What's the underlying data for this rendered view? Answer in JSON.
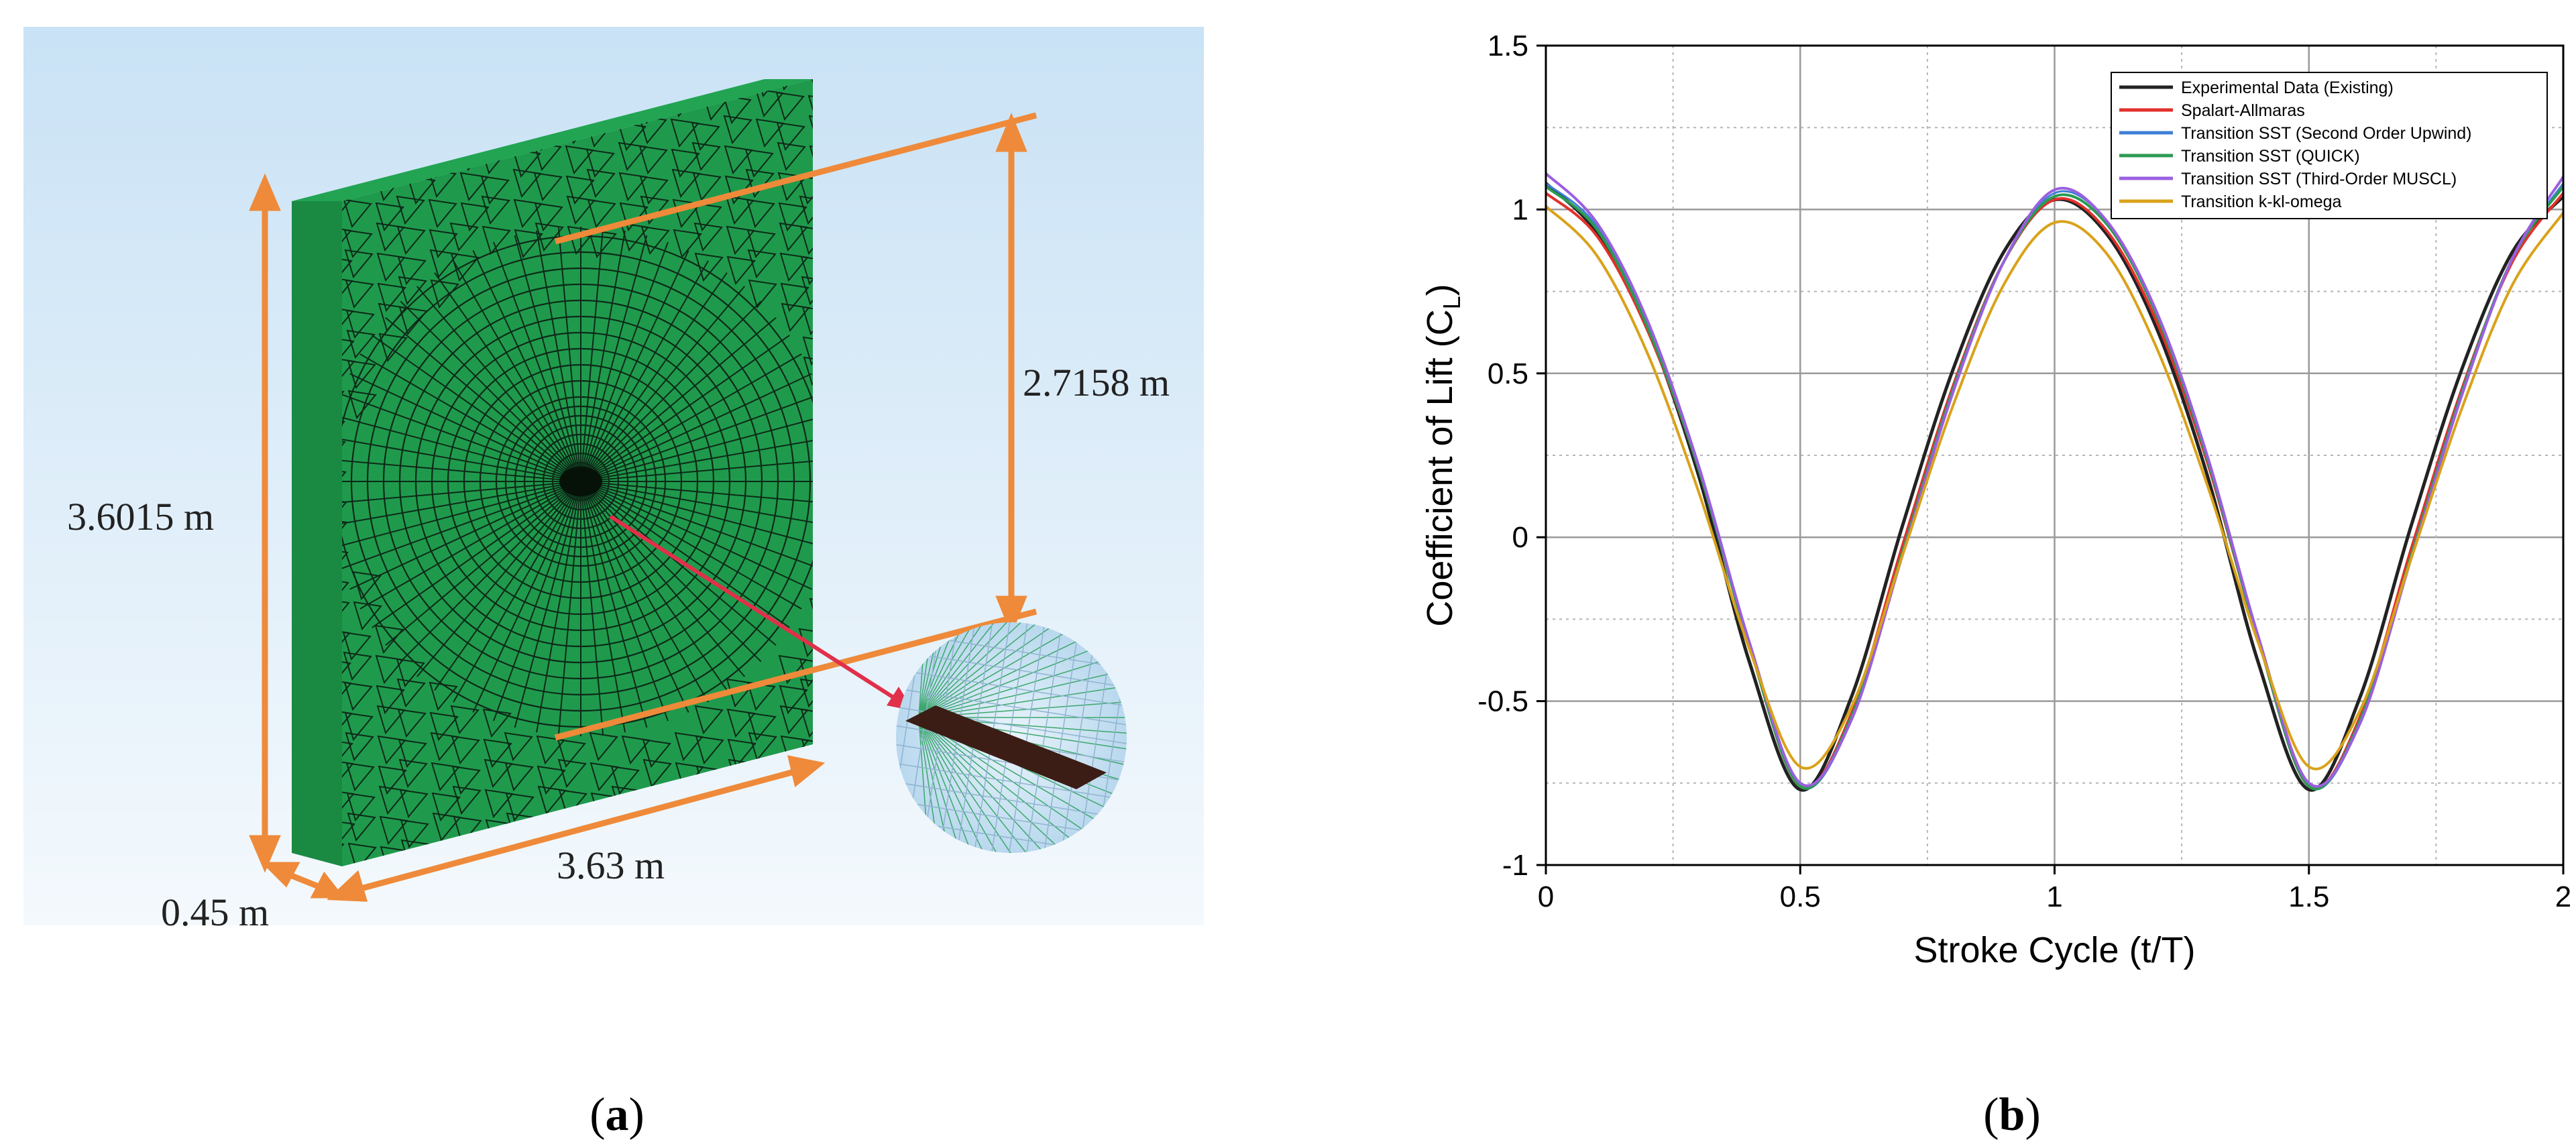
{
  "panel_a": {
    "caption": "a",
    "dimensions": {
      "height": "3.6015 m",
      "inner": "2.7158 m",
      "width": "3.63 m",
      "depth": "0.45 m"
    }
  },
  "panel_b": {
    "caption": "b"
  },
  "colors": {
    "mesh_green": "#1f9a4c",
    "mesh_lines": "#0d2a18",
    "dimension_orange": "#ee8a3a",
    "pointer_red": "#e0304a",
    "sky_top": "#cfe6f6",
    "sky_bottom": "#ffffff"
  },
  "chart_data": {
    "type": "line",
    "title": "",
    "xlabel": "Stroke Cycle (t/T)",
    "ylabel": "Coefficient of Lift (C",
    "ylabel_sub": "L",
    "ylabel_close": ")",
    "xlim": [
      0,
      2
    ],
    "ylim": [
      -1,
      1.5
    ],
    "xticks": [
      0,
      0.5,
      1,
      1.5,
      2
    ],
    "xtick_labels": [
      "0",
      "0.5",
      "1",
      "1.5",
      "2"
    ],
    "yticks": [
      -1,
      -0.5,
      0,
      0.5,
      1,
      1.5
    ],
    "ytick_labels": [
      "-1",
      "-0.5",
      "0",
      "0.5",
      "1",
      "1.5"
    ],
    "grid": true,
    "legend_position": "top-right",
    "series": [
      {
        "name": "Experimental Data (Existing)",
        "color": "#222222",
        "stroke_width": 5,
        "x": [
          0,
          0.1,
          0.2,
          0.3,
          0.4,
          0.5,
          0.6,
          0.7,
          0.8,
          0.9,
          1.0,
          1.1,
          1.2,
          1.3,
          1.4,
          1.5,
          1.6,
          1.7,
          1.8,
          1.9,
          2.0
        ],
        "y": [
          1.08,
          0.93,
          0.64,
          0.19,
          -0.38,
          -0.77,
          -0.49,
          0.03,
          0.51,
          0.87,
          1.03,
          0.93,
          0.64,
          0.19,
          -0.38,
          -0.77,
          -0.49,
          0.03,
          0.51,
          0.87,
          1.04
        ]
      },
      {
        "name": "Spalart-Allmaras",
        "color": "#e2302c",
        "stroke_width": 4,
        "x": [
          0,
          0.1,
          0.2,
          0.3,
          0.4,
          0.5,
          0.6,
          0.7,
          0.8,
          0.9,
          1.0,
          1.1,
          1.2,
          1.3,
          1.4,
          1.5,
          1.6,
          1.7,
          1.8,
          1.9,
          2.0
        ],
        "y": [
          1.05,
          0.92,
          0.63,
          0.21,
          -0.33,
          -0.76,
          -0.54,
          -0.03,
          0.46,
          0.84,
          1.03,
          0.94,
          0.66,
          0.23,
          -0.31,
          -0.76,
          -0.55,
          -0.04,
          0.45,
          0.84,
          1.05
        ]
      },
      {
        "name": "Transition SST (Second Order Upwind)",
        "color": "#3f7fd6",
        "stroke_width": 3,
        "x": [
          0,
          0.1,
          0.2,
          0.3,
          0.4,
          0.5,
          0.6,
          0.7,
          0.8,
          0.9,
          1.0,
          1.1,
          1.2,
          1.3,
          1.4,
          1.5,
          1.6,
          1.7,
          1.8,
          1.9,
          2.0
        ],
        "y": [
          1.08,
          0.95,
          0.65,
          0.22,
          -0.33,
          -0.76,
          -0.56,
          -0.06,
          0.44,
          0.84,
          1.05,
          0.97,
          0.69,
          0.25,
          -0.31,
          -0.76,
          -0.57,
          -0.07,
          0.43,
          0.85,
          1.08
        ]
      },
      {
        "name": "Transition SST (QUICK)",
        "color": "#2c9a52",
        "stroke_width": 4,
        "x": [
          0,
          0.1,
          0.2,
          0.3,
          0.4,
          0.5,
          0.6,
          0.7,
          0.8,
          0.9,
          1.0,
          1.1,
          1.2,
          1.3,
          1.4,
          1.5,
          1.6,
          1.7,
          1.8,
          1.9,
          2.0
        ],
        "y": [
          1.07,
          0.94,
          0.64,
          0.21,
          -0.33,
          -0.76,
          -0.55,
          -0.05,
          0.45,
          0.84,
          1.04,
          0.96,
          0.68,
          0.24,
          -0.31,
          -0.76,
          -0.56,
          -0.06,
          0.44,
          0.85,
          1.07
        ]
      },
      {
        "name": "Transition SST (Third-Order MUSCL)",
        "color": "#9b5fe0",
        "stroke_width": 4,
        "x": [
          0,
          0.1,
          0.2,
          0.3,
          0.4,
          0.5,
          0.6,
          0.7,
          0.8,
          0.9,
          1.0,
          1.1,
          1.2,
          1.3,
          1.4,
          1.5,
          1.6,
          1.7,
          1.8,
          1.9,
          2.0
        ],
        "y": [
          1.11,
          0.96,
          0.66,
          0.22,
          -0.32,
          -0.75,
          -0.56,
          -0.06,
          0.44,
          0.84,
          1.06,
          0.97,
          0.69,
          0.25,
          -0.3,
          -0.75,
          -0.57,
          -0.07,
          0.43,
          0.85,
          1.1
        ]
      },
      {
        "name": "Transition k-kl-omega",
        "color": "#d9a21a",
        "stroke_width": 4,
        "x": [
          0,
          0.1,
          0.2,
          0.3,
          0.4,
          0.5,
          0.6,
          0.7,
          0.8,
          0.9,
          1.0,
          1.1,
          1.2,
          1.3,
          1.4,
          1.5,
          1.6,
          1.7,
          1.8,
          1.9,
          2.0
        ],
        "y": [
          1.01,
          0.86,
          0.56,
          0.14,
          -0.34,
          -0.7,
          -0.52,
          -0.06,
          0.4,
          0.77,
          0.96,
          0.87,
          0.58,
          0.16,
          -0.32,
          -0.7,
          -0.53,
          -0.07,
          0.39,
          0.77,
          0.99
        ]
      }
    ]
  }
}
